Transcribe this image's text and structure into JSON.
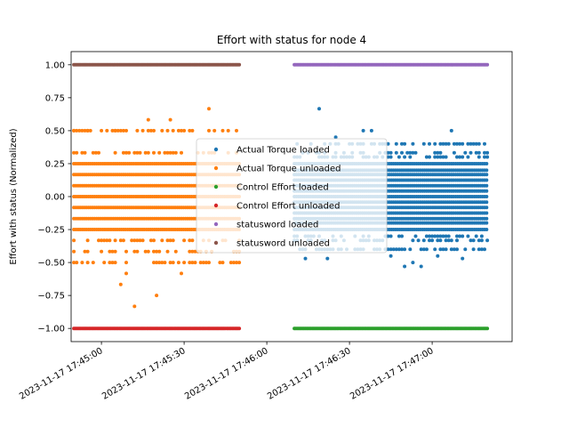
{
  "chart_data": {
    "type": "scatter",
    "title": "Effort with status for node 4",
    "ylabel": "Effort with status (Normalized)",
    "xlabel": "",
    "x_axis_type": "datetime",
    "xlim": [
      "2023-11-17 17:44:49",
      "2023-11-17 17:47:29"
    ],
    "ylim": [
      -1.1,
      1.1
    ],
    "x_ticks": [
      "2023-11-17 17:45:00",
      "2023-11-17 17:45:30",
      "2023-11-17 17:46:00",
      "2023-11-17 17:46:30",
      "2023-11-17 17:47:00"
    ],
    "y_ticks": [
      1.0,
      0.75,
      0.5,
      0.25,
      0.0,
      -0.25,
      -0.5,
      -0.75,
      -1.0
    ],
    "y_tick_labels": [
      "1.00",
      "0.75",
      "0.50",
      "0.25",
      "0.00",
      "−0.25",
      "−0.50",
      "−0.75",
      "−1.00"
    ],
    "grid": false,
    "legend_position": "center",
    "series": [
      {
        "name": "Actual Torque loaded",
        "color": "#1f77b4",
        "x_range": [
          "2023-11-17 17:46:10",
          "2023-11-17 17:47:20"
        ],
        "dense_levels": [
          0.25,
          0.2,
          0.167,
          0.125,
          0.083,
          0.042,
          0.0,
          -0.042,
          -0.083,
          -0.125,
          -0.167,
          -0.2,
          -0.25
        ],
        "sparse_levels": [
          0.4,
          0.333,
          0.3,
          -0.3,
          -0.333,
          -0.4
        ],
        "x": [
          "2023-11-17 17:46:19",
          "2023-11-17 17:46:35",
          "2023-11-17 17:46:38",
          "2023-11-17 17:47:07",
          "2023-11-17 17:46:25",
          "2023-11-17 17:46:14",
          "2023-11-17 17:46:53",
          "2023-11-17 17:47:11",
          "2023-11-17 17:46:22",
          "2023-11-17 17:46:50",
          "2023-11-17 17:46:56",
          "2023-11-17 17:46:45",
          "2023-11-17 17:47:15",
          "2023-11-17 17:47:02"
        ],
        "y": [
          0.667,
          0.5,
          0.5,
          0.5,
          0.45,
          -0.47,
          -0.5,
          -0.47,
          -0.47,
          -0.53,
          -0.53,
          -0.45,
          -0.4,
          -0.45
        ]
      },
      {
        "name": "Actual Torque unloaded",
        "color": "#ff7f0e",
        "x_range": [
          "2023-11-17 17:44:50",
          "2023-11-17 17:45:50"
        ],
        "dense_levels": [
          0.25,
          0.167,
          0.083,
          0.0,
          -0.083,
          -0.167,
          -0.25
        ],
        "sparse_levels": [
          0.333,
          0.5,
          -0.333,
          -0.417,
          -0.5
        ],
        "x": [
          "2023-11-17 17:44:50",
          "2023-11-17 17:44:55",
          "2023-11-17 17:45:05",
          "2023-11-17 17:45:17",
          "2023-11-17 17:45:25",
          "2023-11-17 17:45:39",
          "2023-11-17 17:45:09",
          "2023-11-17 17:45:29",
          "2023-11-17 17:45:07",
          "2023-11-17 17:45:12",
          "2023-11-17 17:45:20"
        ],
        "y": [
          0.5,
          0.5,
          0.5,
          0.583,
          0.583,
          0.667,
          -0.583,
          -0.583,
          -0.667,
          -0.833,
          -0.75
        ]
      },
      {
        "name": "Control Effort loaded",
        "color": "#2ca02c",
        "x": [
          "2023-11-17 17:46:10",
          "2023-11-17 17:47:20"
        ],
        "y": [
          -1.0,
          -1.0
        ]
      },
      {
        "name": "Control Effort unloaded",
        "color": "#d62728",
        "x": [
          "2023-11-17 17:44:50",
          "2023-11-17 17:45:50"
        ],
        "y": [
          -1.0,
          -1.0
        ]
      },
      {
        "name": "statusword loaded",
        "color": "#9467bd",
        "x": [
          "2023-11-17 17:46:10",
          "2023-11-17 17:47:20"
        ],
        "y": [
          1.0,
          1.0
        ]
      },
      {
        "name": "statusword unloaded",
        "color": "#8c564b",
        "x": [
          "2023-11-17 17:44:50",
          "2023-11-17 17:45:50"
        ],
        "y": [
          1.0,
          1.0
        ]
      }
    ]
  }
}
